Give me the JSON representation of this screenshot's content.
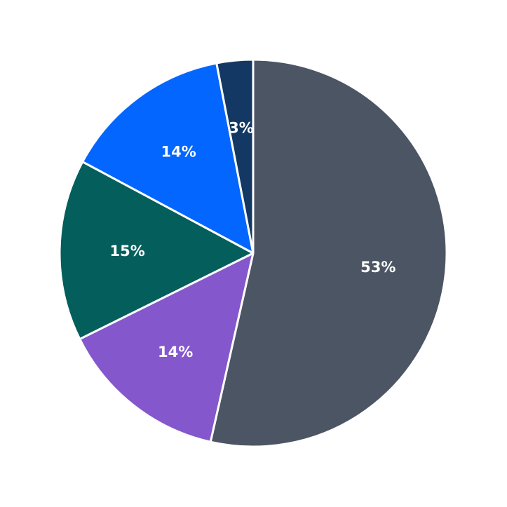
{
  "chart_data": {
    "type": "pie",
    "start_angle": "top, clockwise",
    "slices": [
      {
        "value": 53,
        "label": "53%",
        "color": "#4b5563"
      },
      {
        "value": 14,
        "label": "14%",
        "color": "#8557cc"
      },
      {
        "value": 15,
        "label": "15%",
        "color": "#035e5c"
      },
      {
        "value": 14,
        "label": "14%",
        "color": "#0366fe"
      },
      {
        "value": 3,
        "label": "3%",
        "color": "#133863"
      }
    ]
  }
}
